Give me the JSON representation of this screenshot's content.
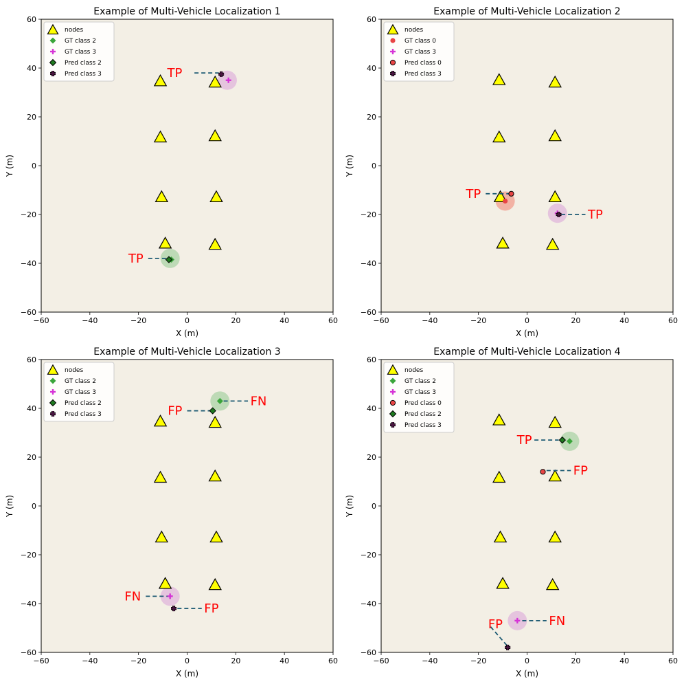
{
  "figure": {
    "background": "#ffffff",
    "plot_bg": "#f3efe5"
  },
  "colors": {
    "node_fill": "#ffff00",
    "class0": "#e84545",
    "class2": "#3aa53a",
    "class3": "#d633d6",
    "pred_class2": "#1f7a1f",
    "pred_class3": "#4a1640",
    "halo_class0": "#f08070",
    "halo_class2": "#90c990",
    "halo_class3": "#d9a0d9",
    "dash": "#1c5a73",
    "annotation": "#ff0000"
  },
  "chart_data": [
    {
      "type": "scatter",
      "title": "Example of Multi-Vehicle Localization 1",
      "xlabel": "X (m)",
      "ylabel": "Y (m)",
      "xlim": [
        -60,
        60
      ],
      "ylim": [
        -60,
        60
      ],
      "xticks": [
        -60,
        -40,
        -20,
        0,
        20,
        40,
        60
      ],
      "yticks": [
        -60,
        -40,
        -20,
        0,
        20,
        40,
        60
      ],
      "legend": [
        "nodes",
        "GT class 2",
        "GT class 3",
        "Pred class 2",
        "Pred class 3"
      ],
      "legend_location": "top-left",
      "nodes": [
        [
          -11,
          34.5
        ],
        [
          11.5,
          34
        ],
        [
          -11,
          11.5
        ],
        [
          11.5,
          12
        ],
        [
          -10.5,
          -13
        ],
        [
          12,
          -13
        ],
        [
          -9,
          -32
        ],
        [
          11.5,
          -32.5
        ]
      ],
      "halos": [
        {
          "x": 16.5,
          "y": 35,
          "cls": 3
        },
        {
          "x": -7,
          "y": -38,
          "cls": 2
        }
      ],
      "gt": [
        {
          "x": 17,
          "y": 35,
          "cls": 3
        },
        {
          "x": -6.5,
          "y": -38.5,
          "cls": 2
        }
      ],
      "pred": [
        {
          "x": 14,
          "y": 37.5,
          "cls": 3
        },
        {
          "x": -7.5,
          "y": -38.5,
          "cls": 2
        }
      ],
      "annotations": [
        {
          "text": "TP",
          "tx": -2,
          "ty": 38,
          "side": "left",
          "lx1": 3,
          "ly1": 38,
          "lx2": 13,
          "ly2": 38
        },
        {
          "text": "TP",
          "tx": -18,
          "ty": -38,
          "side": "left",
          "lx1": -16,
          "ly1": -38,
          "lx2": -7,
          "ly2": -38
        }
      ]
    },
    {
      "type": "scatter",
      "title": "Example of Multi-Vehicle Localization 2",
      "xlabel": "X (m)",
      "ylabel": "Y (m)",
      "xlim": [
        -60,
        60
      ],
      "ylim": [
        -60,
        60
      ],
      "xticks": [
        -60,
        -40,
        -20,
        0,
        20,
        40,
        60
      ],
      "yticks": [
        -60,
        -40,
        -20,
        0,
        20,
        40,
        60
      ],
      "legend": [
        "nodes",
        "GT class 0",
        "GT class 3",
        "Pred class 0",
        "Pred class 3"
      ],
      "legend_location": "top-left",
      "nodes": [
        [
          -11.5,
          35
        ],
        [
          11.5,
          34
        ],
        [
          -11.5,
          11.5
        ],
        [
          11.5,
          12
        ],
        [
          -11,
          -13
        ],
        [
          11.5,
          -13
        ],
        [
          -10,
          -32
        ],
        [
          10.5,
          -32.5
        ]
      ],
      "halos": [
        {
          "x": -9,
          "y": -14.5,
          "cls": 0
        },
        {
          "x": 12.5,
          "y": -19.5,
          "cls": 3
        }
      ],
      "gt": [
        {
          "x": -9,
          "y": -14.5,
          "cls": 0
        },
        {
          "x": 12.5,
          "y": -19.5,
          "cls": 3
        }
      ],
      "pred": [
        {
          "x": -6.5,
          "y": -11.5,
          "cls": 0
        },
        {
          "x": 13,
          "y": -20,
          "cls": 3
        }
      ],
      "annotations": [
        {
          "text": "TP",
          "tx": -19,
          "ty": -11.5,
          "side": "left",
          "lx1": -17,
          "ly1": -11.5,
          "lx2": -7,
          "ly2": -11.5
        },
        {
          "text": "TP",
          "tx": 25,
          "ty": -20,
          "side": "right",
          "lx1": 14,
          "ly1": -20,
          "lx2": 24,
          "ly2": -20
        }
      ]
    },
    {
      "type": "scatter",
      "title": "Example of Multi-Vehicle Localization 3",
      "xlabel": "X (m)",
      "ylabel": "Y (m)",
      "xlim": [
        -60,
        60
      ],
      "ylim": [
        -60,
        60
      ],
      "xticks": [
        -60,
        -40,
        -20,
        0,
        20,
        40,
        60
      ],
      "yticks": [
        -60,
        -40,
        -20,
        0,
        20,
        40,
        60
      ],
      "legend": [
        "nodes",
        "GT class 2",
        "GT class 3",
        "Pred class 2",
        "Pred class 3"
      ],
      "legend_location": "top-left",
      "nodes": [
        [
          -11,
          34.5
        ],
        [
          11.5,
          34
        ],
        [
          -11,
          11.5
        ],
        [
          11.5,
          12
        ],
        [
          -10.5,
          -13
        ],
        [
          12,
          -13
        ],
        [
          -9,
          -32
        ],
        [
          11.5,
          -32.5
        ]
      ],
      "halos": [
        {
          "x": 13.5,
          "y": 43,
          "cls": 2
        },
        {
          "x": -7,
          "y": -37,
          "cls": 3
        }
      ],
      "gt": [
        {
          "x": 13.5,
          "y": 43,
          "cls": 2
        },
        {
          "x": -7,
          "y": -37,
          "cls": 3
        }
      ],
      "pred": [
        {
          "x": 10.5,
          "y": 39,
          "cls": 2
        },
        {
          "x": -5.5,
          "y": -42,
          "cls": 3
        }
      ],
      "annotations": [
        {
          "text": "FP",
          "tx": -2,
          "ty": 39,
          "side": "left",
          "lx1": 0,
          "ly1": 39,
          "lx2": 10,
          "ly2": 39
        },
        {
          "text": "FN",
          "tx": 26,
          "ty": 43,
          "side": "right",
          "lx1": 15,
          "ly1": 43,
          "lx2": 25,
          "ly2": 43
        },
        {
          "text": "FN",
          "tx": -19,
          "ty": -37,
          "side": "left",
          "lx1": -17,
          "ly1": -37,
          "lx2": -7,
          "ly2": -37
        },
        {
          "text": "FP",
          "tx": 7,
          "ty": -42,
          "side": "right",
          "lx1": -4,
          "ly1": -42,
          "lx2": 6,
          "ly2": -42
        }
      ]
    },
    {
      "type": "scatter",
      "title": "Example of Multi-Vehicle Localization 4",
      "xlabel": "X (m)",
      "ylabel": "Y (m)",
      "xlim": [
        -60,
        60
      ],
      "ylim": [
        -60,
        60
      ],
      "xticks": [
        -60,
        -40,
        -20,
        0,
        20,
        40,
        60
      ],
      "yticks": [
        -60,
        -40,
        -20,
        0,
        20,
        40,
        60
      ],
      "legend": [
        "nodes",
        "GT class 2",
        "GT class 3",
        "Pred class 0",
        "Pred class 2",
        "Pred class 3"
      ],
      "legend_location": "top-left",
      "nodes": [
        [
          -11.5,
          35
        ],
        [
          11.5,
          34
        ],
        [
          -11.5,
          11.5
        ],
        [
          11.5,
          12
        ],
        [
          -11,
          -13
        ],
        [
          11.5,
          -13
        ],
        [
          -10,
          -32
        ],
        [
          10.5,
          -32.5
        ]
      ],
      "halos": [
        {
          "x": 17.5,
          "y": 26.5,
          "cls": 2
        },
        {
          "x": -4,
          "y": -47,
          "cls": 3
        }
      ],
      "gt": [
        {
          "x": 17.5,
          "y": 26.5,
          "cls": 2
        },
        {
          "x": -4,
          "y": -47,
          "cls": 3
        }
      ],
      "pred": [
        {
          "x": 14.5,
          "y": 27,
          "cls": 2
        },
        {
          "x": 6.5,
          "y": 14,
          "cls": 0
        },
        {
          "x": -8,
          "y": -58,
          "cls": 3
        }
      ],
      "annotations": [
        {
          "text": "TP",
          "tx": 2,
          "ty": 27,
          "side": "left",
          "lx1": 3,
          "ly1": 27,
          "lx2": 13,
          "ly2": 27
        },
        {
          "text": "FP",
          "tx": 19,
          "ty": 14.5,
          "side": "right",
          "lx1": 8,
          "ly1": 14.5,
          "lx2": 18,
          "ly2": 14.5
        },
        {
          "text": "FN",
          "tx": 9,
          "ty": -47,
          "side": "right",
          "lx1": -2,
          "ly1": -47,
          "lx2": 8,
          "ly2": -47
        },
        {
          "text": "FP",
          "tx": -16,
          "ty": -48.5,
          "side": "right",
          "lx1": -15,
          "ly1": -49.5,
          "lx2": -8,
          "ly2": -57.5
        }
      ]
    }
  ]
}
